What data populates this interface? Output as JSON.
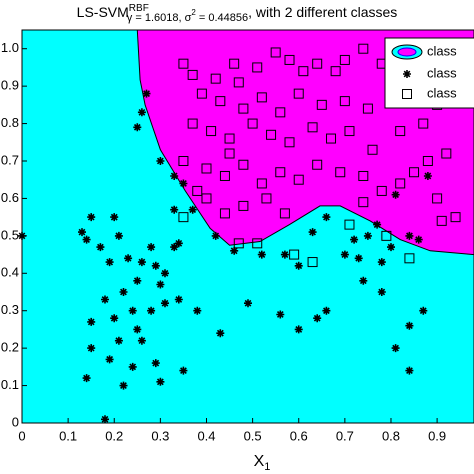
{
  "chart_data": {
    "type": "scatter",
    "title": "LS-SVM",
    "title_superscript": "RBF",
    "title_subscript": "γ = 1.6018, σ",
    "title_subscript_superscript": "2",
    "title_subscript_end": " = 0.44856",
    "title_end": ", with 2 different classes",
    "xlabel": "X",
    "xlabel_subscript": "1",
    "xlim": [
      0,
      0.98
    ],
    "ylim": [
      0,
      1.05
    ],
    "xticks": [
      0,
      0.1,
      0.2,
      0.3,
      0.4,
      0.5,
      0.6,
      0.7,
      0.8,
      0.9
    ],
    "yticks": [
      0,
      0.1,
      0.2,
      0.3,
      0.4,
      0.5,
      0.6,
      0.7,
      0.8,
      0.9,
      {
        "value": 1,
        "label": "1.0"
      }
    ],
    "background_color": "#00ffff",
    "boundary": {
      "color": "#ff00ff",
      "x": [
        0.25,
        0.256,
        0.267,
        0.3,
        0.354,
        0.408,
        0.45,
        0.516,
        0.58,
        0.646,
        0.69,
        0.755,
        0.82,
        0.885,
        0.98
      ],
      "y": [
        1.05,
        0.917,
        0.85,
        0.73,
        0.62,
        0.52,
        0.475,
        0.485,
        0.53,
        0.58,
        0.58,
        0.54,
        0.49,
        0.46,
        0.45
      ]
    },
    "legend_labels": [
      "class",
      "class",
      "class"
    ],
    "series": [
      {
        "name": "class",
        "marker": "star",
        "color": "#000000",
        "x": [
          0.0,
          0.13,
          0.14,
          0.17,
          0.15,
          0.2,
          0.21,
          0.19,
          0.23,
          0.26,
          0.28,
          0.33,
          0.34,
          0.31,
          0.3,
          0.25,
          0.22,
          0.18,
          0.2,
          0.24,
          0.28,
          0.31,
          0.34,
          0.38,
          0.15,
          0.15,
          0.21,
          0.19,
          0.24,
          0.26,
          0.29,
          0.35,
          0.3,
          0.22,
          0.14,
          0.18,
          0.25,
          0.29,
          0.27,
          0.26,
          0.25,
          0.3,
          0.33,
          0.35,
          0.37,
          0.33,
          0.42,
          0.46,
          0.52,
          0.57,
          0.6,
          0.63,
          0.66,
          0.7,
          0.73,
          0.72,
          0.75,
          0.77,
          0.78,
          0.8,
          0.74,
          0.78,
          0.64,
          0.6,
          0.66,
          0.84,
          0.87,
          0.81,
          0.84,
          0.81,
          0.84,
          0.86,
          0.88,
          0.56,
          0.49,
          0.43
        ],
        "y": [
          0.5,
          0.51,
          0.49,
          0.47,
          0.55,
          0.55,
          0.5,
          0.43,
          0.44,
          0.43,
          0.47,
          0.47,
          0.48,
          0.4,
          0.37,
          0.38,
          0.35,
          0.33,
          0.28,
          0.3,
          0.3,
          0.32,
          0.33,
          0.3,
          0.27,
          0.2,
          0.22,
          0.17,
          0.15,
          0.22,
          0.16,
          0.14,
          0.11,
          0.1,
          0.12,
          0.01,
          0.25,
          0.42,
          0.88,
          0.83,
          0.79,
          0.7,
          0.66,
          0.64,
          0.57,
          0.57,
          0.5,
          0.46,
          0.45,
          0.45,
          0.42,
          0.51,
          0.55,
          0.45,
          0.44,
          0.49,
          0.5,
          0.53,
          0.43,
          0.47,
          0.38,
          0.35,
          0.28,
          0.25,
          0.3,
          0.26,
          0.3,
          0.2,
          0.14,
          0.61,
          0.5,
          0.49,
          0.66,
          0.29,
          0.32,
          0.24
        ]
      },
      {
        "name": "class",
        "marker": "square",
        "color": "#000000",
        "x": [
          0.35,
          0.37,
          0.39,
          0.42,
          0.46,
          0.47,
          0.51,
          0.55,
          0.58,
          0.61,
          0.64,
          0.68,
          0.7,
          0.74,
          0.78,
          0.82,
          0.43,
          0.48,
          0.52,
          0.56,
          0.6,
          0.65,
          0.7,
          0.75,
          0.8,
          0.37,
          0.41,
          0.45,
          0.5,
          0.54,
          0.58,
          0.63,
          0.67,
          0.71,
          0.76,
          0.82,
          0.87,
          0.9,
          0.92,
          0.88,
          0.85,
          0.35,
          0.4,
          0.44,
          0.48,
          0.52,
          0.56,
          0.6,
          0.64,
          0.69,
          0.74,
          0.78,
          0.82,
          0.9,
          0.94,
          0.4,
          0.44,
          0.48,
          0.53,
          0.57,
          0.35,
          0.38,
          0.47,
          0.51,
          0.59,
          0.63,
          0.71,
          0.74,
          0.79,
          0.84,
          0.91,
          0.45
        ],
        "y": [
          0.96,
          0.93,
          0.88,
          0.92,
          0.96,
          0.91,
          0.95,
          0.99,
          0.97,
          0.94,
          0.96,
          0.94,
          0.97,
          1.0,
          0.96,
          0.93,
          0.86,
          0.84,
          0.87,
          0.83,
          0.88,
          0.85,
          0.86,
          0.84,
          0.88,
          0.8,
          0.78,
          0.76,
          0.8,
          0.77,
          0.75,
          0.79,
          0.76,
          0.78,
          0.73,
          0.78,
          0.8,
          0.85,
          0.72,
          0.7,
          0.67,
          0.7,
          0.68,
          0.66,
          0.69,
          0.64,
          0.67,
          0.65,
          0.69,
          0.67,
          0.66,
          0.62,
          0.64,
          0.6,
          0.55,
          0.6,
          0.56,
          0.58,
          0.6,
          0.56,
          0.55,
          0.62,
          0.48,
          0.48,
          0.45,
          0.43,
          0.53,
          0.59,
          0.5,
          0.44,
          0.54,
          0.72
        ]
      }
    ]
  }
}
